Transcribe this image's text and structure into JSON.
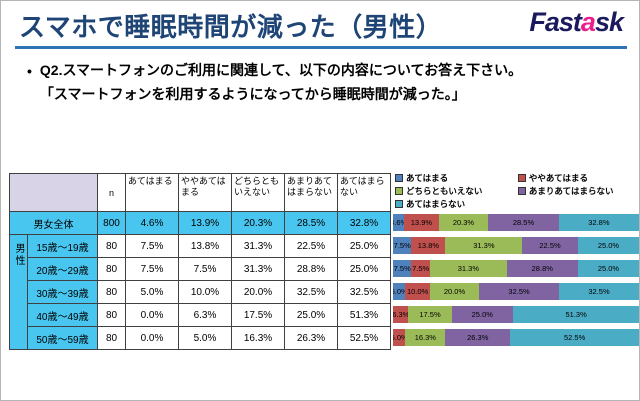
{
  "header": {
    "title": "スマホで睡眠時間が減った（男性）",
    "logo_fast": "Fast",
    "logo_a": "a",
    "logo_sk": "sk",
    "logo_navy": "#1B1A5E",
    "logo_pink": "#EC1E8C",
    "title_color": "#1F4576",
    "rule_color": "#2E74B5"
  },
  "question": {
    "bullet": "•",
    "line1": "Q2.スマートフォンのご利用に関連して、以下の内容についてお答え下さい。",
    "line2": "「スマートフォンを利用するようになってから睡眠時間が減った。」"
  },
  "table": {
    "n_header": "n",
    "option_headers": [
      "あてはまる",
      "ややあてはまる",
      "どちらともいえない",
      "あまりあてはまらない",
      "あてはまらない"
    ],
    "group_label": "男性",
    "highlight_color": "#49C6EF",
    "total_row": {
      "label": "男女全体",
      "n": "800",
      "values": [
        "4.6%",
        "13.9%",
        "20.3%",
        "28.5%",
        "32.8%"
      ]
    },
    "age_rows": [
      {
        "label": "15歳～19歳",
        "n": "80",
        "values": [
          "7.5%",
          "13.8%",
          "31.3%",
          "22.5%",
          "25.0%"
        ]
      },
      {
        "label": "20歳～29歳",
        "n": "80",
        "values": [
          "7.5%",
          "7.5%",
          "31.3%",
          "28.8%",
          "25.0%"
        ]
      },
      {
        "label": "30歳～39歳",
        "n": "80",
        "values": [
          "5.0%",
          "10.0%",
          "20.0%",
          "32.5%",
          "32.5%"
        ]
      },
      {
        "label": "40歳～49歳",
        "n": "80",
        "values": [
          "0.0%",
          "6.3%",
          "17.5%",
          "25.0%",
          "51.3%"
        ]
      },
      {
        "label": "50歳～59歳",
        "n": "80",
        "values": [
          "0.0%",
          "5.0%",
          "16.3%",
          "26.3%",
          "52.5%"
        ]
      }
    ]
  },
  "chart_data": {
    "type": "bar",
    "orientation": "horizontal_stacked",
    "title": "",
    "xlabel": "",
    "ylabel": "",
    "xlim": [
      0,
      100
    ],
    "grid": false,
    "legend_position": "top",
    "value_label_format": "0.0%",
    "categories": [
      "男女全体",
      "15歳～19歳",
      "20歳～29歳",
      "30歳～39歳",
      "40歳～49歳",
      "50歳～59歳"
    ],
    "series": [
      {
        "name": "あてはまる",
        "color": "#4F81BD",
        "values": [
          4.6,
          7.5,
          7.5,
          5.0,
          0.0,
          0.0
        ]
      },
      {
        "name": "ややあてはまる",
        "color": "#C0504D",
        "values": [
          13.9,
          13.8,
          7.5,
          10.0,
          6.3,
          5.0
        ]
      },
      {
        "name": "どちらともいえない",
        "color": "#9BBB59",
        "values": [
          20.3,
          31.3,
          31.3,
          20.0,
          17.5,
          16.3
        ]
      },
      {
        "name": "あまりあてはまらない",
        "color": "#8064A2",
        "values": [
          28.5,
          22.5,
          28.8,
          32.5,
          25.0,
          26.3
        ]
      },
      {
        "name": "あてはまらない",
        "color": "#4BACC6",
        "values": [
          32.8,
          25.0,
          25.0,
          32.5,
          51.3,
          52.5
        ]
      }
    ]
  }
}
